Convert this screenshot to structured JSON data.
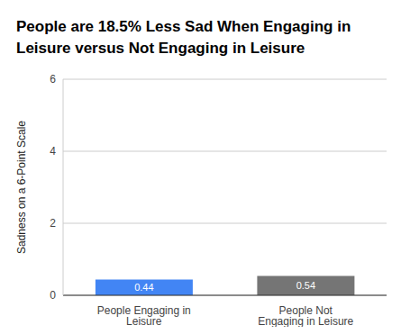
{
  "chart_data": {
    "type": "bar",
    "title": "People are 18.5% Less Sad When Engaging in Leisure versus Not Engaging in Leisure",
    "y_label": "Sadness on a 6-Point Scale",
    "categories": [
      "People Engaging in Leisure",
      "People Not Engaging in Leisure"
    ],
    "values": [
      0.44,
      0.54
    ],
    "colors": [
      "#4285f4",
      "#757575"
    ],
    "ylim": [
      0,
      6
    ],
    "yticks": [
      0,
      2,
      4,
      6
    ],
    "grid": true,
    "data_labels": true
  }
}
